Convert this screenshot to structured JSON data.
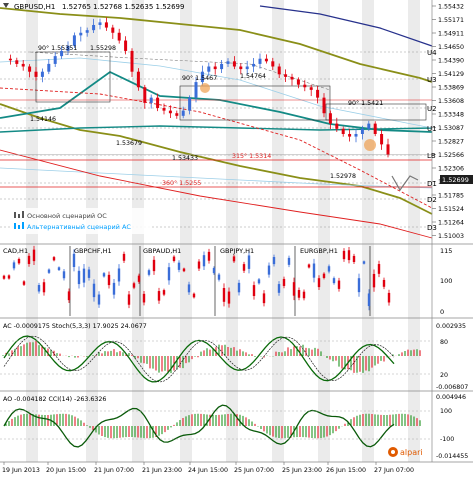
{
  "header": {
    "symbol": "GBPUSD,H1",
    "ohlc": "1.52765 1.52768 1.52635 1.52699"
  },
  "colors": {
    "bull": "#3a6dd8",
    "bear": "#e0000f",
    "teal": "#138a85",
    "olive": "#8a8f18",
    "navy": "#27318c",
    "red_line": "#e02020",
    "bg_band": "#e6e6e6",
    "price_badge": "#1e1e1e"
  },
  "price_axis": {
    "ticks": [
      "1.55432",
      "1.55171",
      "1.54911",
      "1.54650",
      "1.54390",
      "1.54129",
      "1.53869",
      "1.53608",
      "1.53348",
      "1.53087",
      "1.52827",
      "1.52566",
      "1.52306",
      "1.52045",
      "1.51785",
      "1.51524",
      "1.51264",
      "1.51003"
    ],
    "current": "1.52699"
  },
  "levels": {
    "labels": [
      "U4",
      "U3",
      "U2",
      "U1",
      "LB",
      "D1",
      "D2",
      "D3"
    ]
  },
  "annotations": [
    {
      "text": "90° 1.55351"
    },
    {
      "text": "1.55298"
    },
    {
      "text": "1.54146"
    },
    {
      "text": "1.53679"
    },
    {
      "text": "1.53433"
    },
    {
      "text": "90° 1.5467"
    },
    {
      "text": "1.54764"
    },
    {
      "text": "90° 1.5421"
    },
    {
      "text": "315° 1.5314"
    },
    {
      "text": "1.52978"
    },
    {
      "text": "360° 1.5255"
    }
  ],
  "legend": {
    "items": [
      {
        "label": "Основной сценарий ОС",
        "color": "#555555"
      },
      {
        "label": "Альтернативный сценарий АС",
        "color": "#00a0ff"
      }
    ]
  },
  "cross_panel": {
    "labels": [
      "CAD,H1",
      "GBPCHF,H1",
      "GBPAUD,H1",
      "GBPJPY,H1",
      "EURGBP,H1"
    ],
    "ticks": [
      "115",
      "100",
      "0"
    ]
  },
  "ac_stoch": {
    "label": "AC -0.0009175  Stoch(5,3,3) 17.9025 24.0677",
    "ticks": [
      "0.002935",
      "80",
      "20",
      "-0.006807"
    ]
  },
  "ao_cci": {
    "label": "AO -0.004182  CCI(14) -263.6326",
    "ticks": [
      "0.004946",
      "100",
      "-100",
      "-0.014455"
    ]
  },
  "time_axis": {
    "labels": [
      "19 Jun 2013",
      "20 Jun 15:00",
      "21 Jun 07:00",
      "21 Jun 23:00",
      "24 Jun 15:00",
      "25 Jun 07:00",
      "25 Jun 23:00",
      "26 Jun 15:00",
      "27 Jun 07:00"
    ]
  },
  "brand": "alpari",
  "chart_data": {
    "type": "candlestick",
    "title": "GBPUSD,H1",
    "y_range": [
      1.51,
      1.5545
    ],
    "last_price": 1.52699,
    "key_points": [
      {
        "label": "1.55298",
        "value": 1.55298
      },
      {
        "label": "1.54146",
        "value": 1.54146
      },
      {
        "label": "1.53679",
        "value": 1.53679
      },
      {
        "label": "1.53433",
        "value": 1.53433
      },
      {
        "label": "1.54764",
        "value": 1.54764
      },
      {
        "label": "1.52978",
        "value": 1.52978
      }
    ],
    "fan_levels": [
      {
        "angle": "90°",
        "value": 1.55351
      },
      {
        "angle": "90°",
        "value": 1.5467
      },
      {
        "angle": "90°",
        "value": 1.5421
      },
      {
        "angle": "315°",
        "value": 1.5314
      },
      {
        "angle": "360°",
        "value": 1.5255
      }
    ],
    "close_path": [
      1.5455,
      1.5452,
      1.5445,
      1.544,
      1.543,
      1.542,
      1.543,
      1.5445,
      1.546,
      1.547,
      1.548,
      1.55,
      1.5505,
      1.551,
      1.552,
      1.5525,
      1.5515,
      1.5505,
      1.549,
      1.547,
      1.543,
      1.54,
      1.537,
      1.538,
      1.536,
      1.5355,
      1.535,
      1.5345,
      1.5355,
      1.538,
      1.541,
      1.543,
      1.544,
      1.5435,
      1.5445,
      1.545,
      1.544,
      1.5435,
      1.544,
      1.5445,
      1.5455,
      1.545,
      1.544,
      1.5425,
      1.542,
      1.5415,
      1.5405,
      1.54,
      1.5395,
      1.538,
      1.535,
      1.533,
      1.532,
      1.531,
      1.5305,
      1.531,
      1.532,
      1.533,
      1.531,
      1.529,
      1.527
    ]
  }
}
